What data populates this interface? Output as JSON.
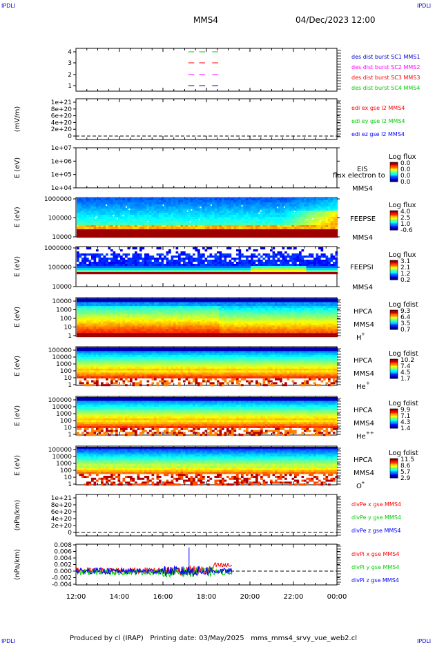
{
  "header": {
    "corner_left": "IPDLI",
    "corner_right": "IPDLI",
    "spacecraft": "MMS4",
    "datetime": "04/Dec/2023 12:00",
    "footer": "Produced by cl (IRAP)   Printing date: 03/May/2025   mms_mms4_srvy_vue_web2.cl",
    "corner_bl": "IPDLI",
    "corner_br": "IPDLI"
  },
  "colors": {
    "red": "#ff0000",
    "green": "#00cc00",
    "blue": "#0000ff",
    "magenta": "#ff00ff"
  },
  "time_axis": {
    "ticks": [
      "12:00",
      "14:00",
      "16:00",
      "18:00",
      "20:00",
      "22:00",
      "00:00"
    ]
  },
  "chart_data": [
    {
      "type": "line",
      "panel": "burst",
      "yticks": [
        "1",
        "2",
        "3",
        "4"
      ],
      "series": [
        {
          "name": "des dist burst SC1 MMS1",
          "color": "#0000cc",
          "y": 1
        },
        {
          "name": "des dist burst SC2 MMS2",
          "color": "#ff00ff",
          "y": 2
        },
        {
          "name": "des dist burst SC3 MMS3",
          "color": "#ff0000",
          "y": 3
        },
        {
          "name": "des dist burst SC4 MMS4",
          "color": "#00cc00",
          "y": 4
        }
      ],
      "burst_intervals": [
        [
          17.1,
          17.5
        ],
        [
          17.6,
          18.0
        ],
        [
          18.2,
          18.6
        ]
      ]
    },
    {
      "type": "line",
      "panel": "edi",
      "ylabel": "(mV/m)",
      "yticks": [
        "0",
        "2e+20",
        "4e+20",
        "6e+20",
        "8e+20",
        "1e+21"
      ],
      "legend": [
        {
          "text": "edi ex gse l2 MMS4",
          "color": "#ff0000"
        },
        {
          "text": "edi ey gse l2 MMS4",
          "color": "#00cc00"
        },
        {
          "text": "edi ez gse l2 MMS4",
          "color": "#0000ff"
        }
      ]
    },
    {
      "type": "heatmap",
      "panel": "eis",
      "ylabel": "E (eV)",
      "yticks": [
        "1e+04",
        "1e+05",
        "1e+06",
        "1e+07"
      ],
      "labels": [
        "EIS",
        "MMS4"
      ],
      "overlay": "flux electron to",
      "cbar_title": "Log flux",
      "cbar_ticks": [
        "0.0",
        "0.0",
        "0.0",
        "0.0"
      ]
    },
    {
      "type": "heatmap",
      "panel": "feepse",
      "ylabel": "E (eV)",
      "yticks": [
        "10000",
        "100000",
        "1000000"
      ],
      "labels": [
        "FEEPSE",
        "MMS4"
      ],
      "cbar_title": "Log flux",
      "cbar_ticks": [
        "4.0",
        "2.5",
        "1.0",
        "-0.6"
      ]
    },
    {
      "type": "heatmap",
      "panel": "feepsi",
      "ylabel": "E (eV)",
      "yticks": [
        "10000",
        "100000",
        "1000000"
      ],
      "labels": [
        "FEEPSI",
        "MMS4"
      ],
      "cbar_title": "Log flux",
      "cbar_ticks": [
        "3.1",
        "2.1",
        "1.2",
        "0.2"
      ]
    },
    {
      "type": "heatmap",
      "panel": "hpca_h",
      "ylabel": "E (eV)",
      "yticks": [
        "1",
        "10",
        "100",
        "1000",
        "10000"
      ],
      "labels": [
        "HPCA",
        "MMS4",
        "H",
        "+"
      ],
      "cbar_title": "Log fdist",
      "cbar_ticks": [
        "9.3",
        "6.4",
        "3.5",
        "0.7"
      ]
    },
    {
      "type": "heatmap",
      "panel": "hpca_he",
      "ylabel": "E (eV)",
      "yticks": [
        "1",
        "10",
        "100",
        "1000",
        "10000",
        "100000"
      ],
      "labels": [
        "HPCA",
        "MMS4",
        "He",
        "+"
      ],
      "cbar_title": "Log fdist",
      "cbar_ticks": [
        "10.2",
        "7.4",
        "4.5",
        "1.7"
      ]
    },
    {
      "type": "heatmap",
      "panel": "hpca_he2",
      "ylabel": "E (eV)",
      "yticks": [
        "1",
        "10",
        "100",
        "1000",
        "10000",
        "100000"
      ],
      "labels": [
        "HPCA",
        "MMS4",
        "He",
        "++"
      ],
      "cbar_title": "Log fdist",
      "cbar_ticks": [
        "9.9",
        "7.1",
        "4.3",
        "1.4"
      ]
    },
    {
      "type": "heatmap",
      "panel": "hpca_o",
      "ylabel": "E (eV)",
      "yticks": [
        "1",
        "10",
        "100",
        "1000",
        "10000",
        "100000"
      ],
      "labels": [
        "HPCA",
        "MMS4",
        "O",
        "+"
      ],
      "cbar_title": "Log fdist",
      "cbar_ticks": [
        "11.5",
        "8.6",
        "5.7",
        "2.9"
      ]
    },
    {
      "type": "line",
      "panel": "divpe",
      "ylabel": "(nPa/km)",
      "yticks": [
        "0",
        "2e+20",
        "4e+20",
        "6e+20",
        "8e+20",
        "1e+21"
      ],
      "legend": [
        {
          "text": "divPe x gse MMS4",
          "color": "#ff0000"
        },
        {
          "text": "divPe y gse MMS4",
          "color": "#00cc00"
        },
        {
          "text": "divPe z gse MMS4",
          "color": "#0000ff"
        }
      ]
    },
    {
      "type": "line",
      "panel": "divpi",
      "ylabel": "(nPa/km)",
      "yticks": [
        "-0.004",
        "-0.002",
        "0.000",
        "0.002",
        "0.004",
        "0.006",
        "0.008"
      ],
      "ylim": [
        -0.004,
        0.008
      ],
      "data_end_hour": 19.2,
      "legend": [
        {
          "text": "divPi x gse MMS4",
          "color": "#ff0000"
        },
        {
          "text": "divPi y gse MMS4",
          "color": "#00cc00"
        },
        {
          "text": "divPi z gse MMS4",
          "color": "#0000ff"
        }
      ]
    }
  ]
}
